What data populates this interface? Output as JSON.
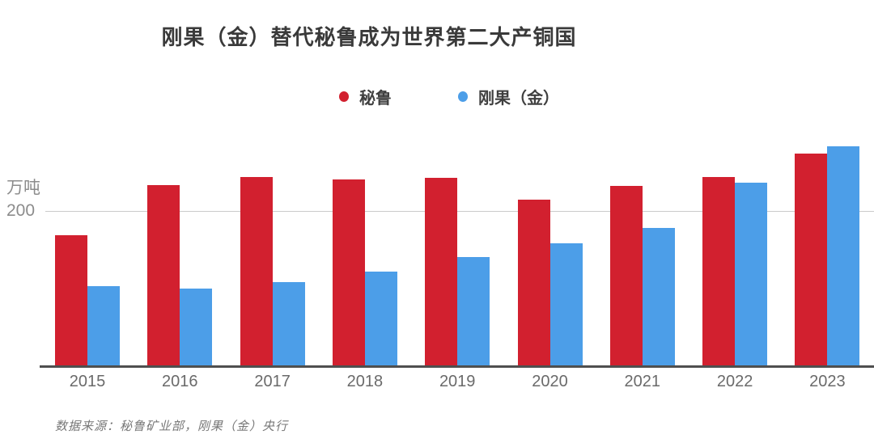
{
  "title": "刚果（金）替代秘鲁成为世界第二大产铜国",
  "y_axis": {
    "unit_label": "万吨",
    "tick_label": "200",
    "tick_value": 200
  },
  "source_note": "数据来源：秘鲁矿业部，刚果（金）央行",
  "colors": {
    "peru_red": "#d2202f",
    "congo_blue": "#4c9ee8",
    "gridline": "#cbcbcb",
    "axis_line": "#4f4f4f"
  },
  "chart_data": {
    "type": "bar",
    "title": "刚果（金）替代秘鲁成为世界第二大产铜国",
    "unit": "万吨",
    "categories": [
      "2015",
      "2016",
      "2017",
      "2018",
      "2019",
      "2020",
      "2021",
      "2022",
      "2023"
    ],
    "series": [
      {
        "key": "peru",
        "name": "秘鲁",
        "color": "#d2202f",
        "values": [
          169,
          234,
          244,
          241,
          243,
          215,
          233,
          244,
          275
        ]
      },
      {
        "key": "congo",
        "name": "刚果（金）",
        "color": "#4c9ee8",
        "values": [
          103,
          100,
          109,
          122,
          141,
          159,
          179,
          237,
          284
        ]
      }
    ],
    "xlabel": "",
    "ylabel": "万吨",
    "ylim": [
      0,
      316
    ],
    "gridlines": [
      200
    ],
    "grid": "horizontal-single",
    "legend_position": "top-center",
    "source": "数据来源：秘鲁矿业部，刚果（金）央行"
  }
}
